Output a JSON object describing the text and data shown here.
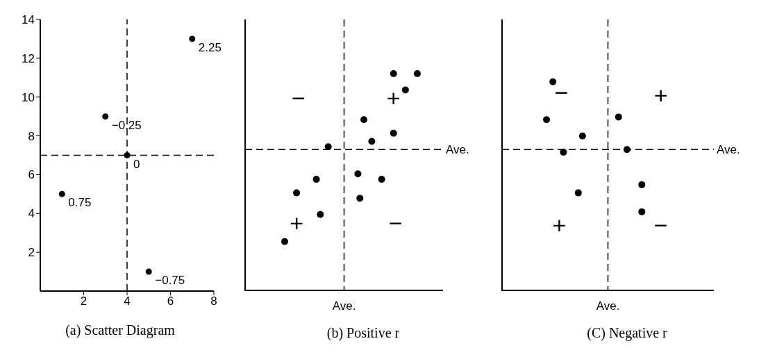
{
  "chart_data": [
    {
      "type": "scatter",
      "title": "(a) Scatter Diagram",
      "x": [
        1,
        3,
        4,
        5,
        7
      ],
      "values": [
        5,
        9,
        7,
        1,
        13
      ],
      "color": "#000000",
      "marker": "circle",
      "xlim": [
        0,
        8
      ],
      "ylim": [
        0,
        14
      ],
      "xticks": [
        2,
        4,
        6,
        8
      ],
      "yticks": [
        2,
        4,
        6,
        8,
        10,
        12,
        14
      ],
      "ref_lines": [
        {
          "axis": "x",
          "value": 4,
          "line_style": "dashed"
        },
        {
          "axis": "y",
          "value": 7,
          "line_style": "dashed"
        }
      ],
      "annotations": [
        {
          "text": "0.75",
          "x": 1,
          "y": 5
        },
        {
          "text": "−0.25",
          "x": 3,
          "y": 9
        },
        {
          "text": "0",
          "x": 4,
          "y": 7
        },
        {
          "text": "−0.75",
          "x": 5,
          "y": 1
        },
        {
          "text": "2.25",
          "x": 7,
          "y": 13
        }
      ]
    },
    {
      "type": "other",
      "title": "(b) Positive r",
      "annotations": [
        "Ave.",
        "Ave.",
        "−",
        "+",
        "+",
        "−"
      ]
    },
    {
      "type": "other",
      "title": "(C) Negative r",
      "annotations": [
        "Ave.",
        "Ave.",
        "−",
        "+",
        "+",
        "−"
      ]
    }
  ]
}
